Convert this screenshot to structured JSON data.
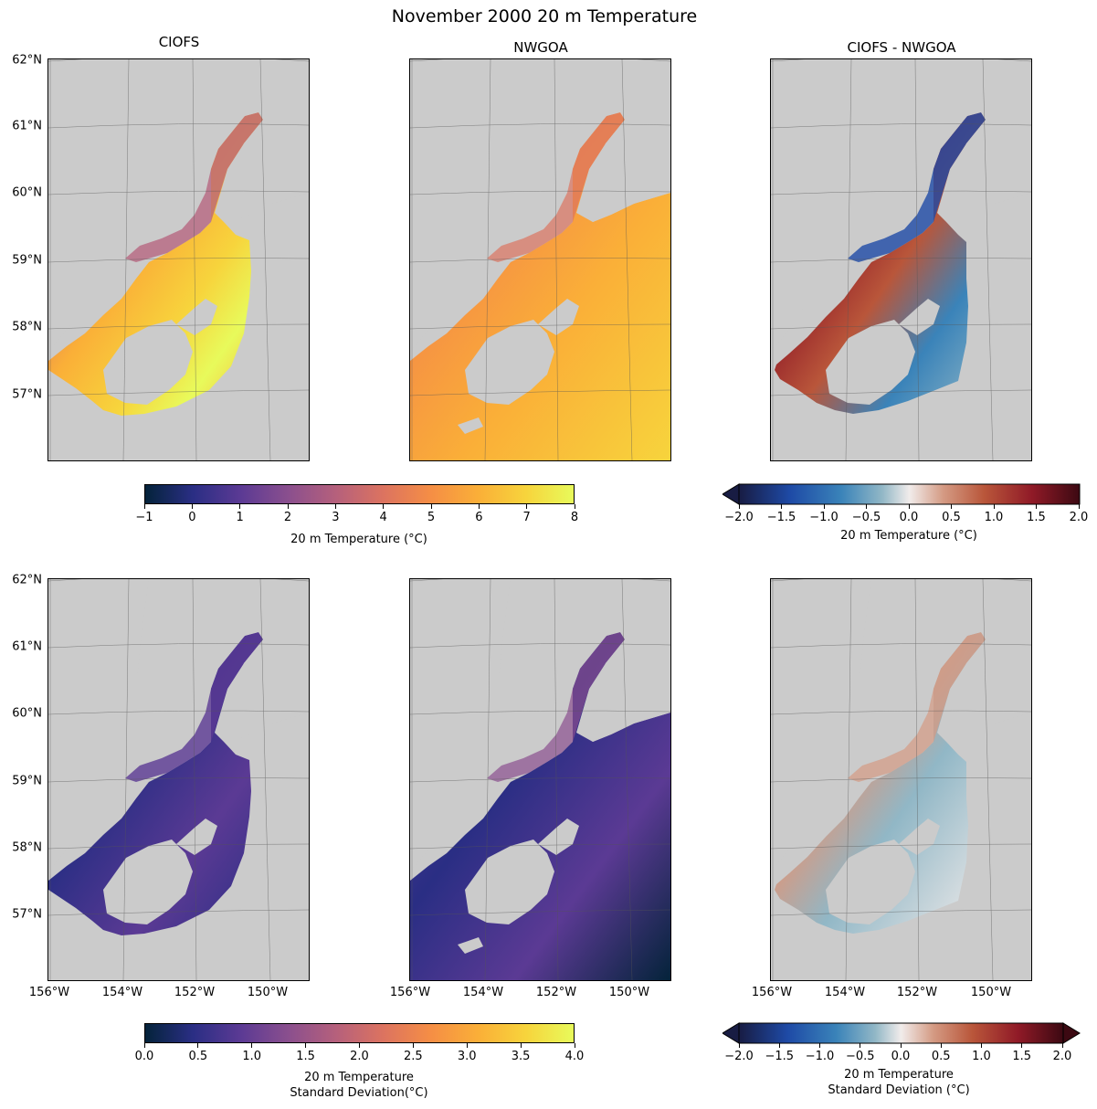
{
  "figure": {
    "title": "November 2000 20 m Temperature"
  },
  "panels": {
    "p1": {
      "title": "CIOFS"
    },
    "p2": {
      "title": "NWGOA"
    },
    "p3": {
      "title": "CIOFS - NWGOA"
    }
  },
  "axes": {
    "lat_ticks": [
      "62°N",
      "61°N",
      "60°N",
      "59°N",
      "58°N",
      "57°N"
    ],
    "lon_ticks": [
      "156°W",
      "154°W",
      "152°W",
      "150°W"
    ]
  },
  "colorbars": {
    "temp": {
      "label": "20 m Temperature (°C)",
      "range": [
        -1,
        8
      ],
      "ticks": [
        "−1",
        "0",
        "1",
        "2",
        "3",
        "4",
        "5",
        "6",
        "7",
        "8"
      ],
      "colormap": "thermal"
    },
    "temp_diff": {
      "label": "20 m Temperature (°C)",
      "range": [
        -2.0,
        2.0
      ],
      "ticks": [
        "−2.0",
        "−1.5",
        "−1.0",
        "−0.5",
        "0.0",
        "0.5",
        "1.0",
        "1.5",
        "2.0"
      ],
      "colormap": "balance",
      "extend": "both"
    },
    "std": {
      "label_line1": "20 m Temperature",
      "label_line2": "Standard Deviation(°C)",
      "range": [
        0.0,
        4.0
      ],
      "ticks": [
        "0.0",
        "0.5",
        "1.0",
        "1.5",
        "2.0",
        "2.5",
        "3.0",
        "3.5",
        "4.0"
      ],
      "colormap": "thermal"
    },
    "std_diff": {
      "label_line1": "20 m Temperature",
      "label_line2": "Standard Deviation (°C)",
      "range": [
        -2.0,
        2.0
      ],
      "ticks": [
        "−2.0",
        "−1.5",
        "−1.0",
        "−0.5",
        "0.0",
        "0.5",
        "1.0",
        "1.5",
        "2.0"
      ],
      "colormap": "balance",
      "extend": "both"
    }
  },
  "colors": {
    "land": "#cbcbcb",
    "thermal": [
      "#04233a",
      "#2a2e84",
      "#5b3a94",
      "#8a4f8e",
      "#b5607c",
      "#dc7360",
      "#f58e45",
      "#faaf38",
      "#f7d43c",
      "#e8fa5b"
    ],
    "balance": [
      "#181c43",
      "#1e4aa6",
      "#3a83b9",
      "#91b7c6",
      "#f1eceb",
      "#d49a83",
      "#b9563a",
      "#901a27",
      "#3c0912"
    ]
  }
}
